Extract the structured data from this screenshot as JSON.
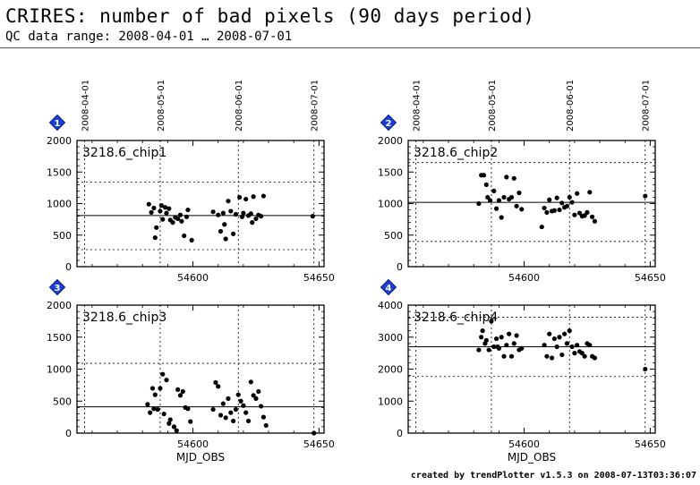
{
  "header": {
    "title": "CRIRES: number of bad pixels (90 days period)",
    "subtitle": "QC data range: 2008-04-01 … 2008-07-01"
  },
  "footer": "created by trendPlotter v1.5.3 on 2008-07-13T03:36:07",
  "colors": {
    "badge": "#1a3fd6",
    "points": "#000000"
  },
  "chart_data": [
    {
      "type": "scatter",
      "badge": "1",
      "label": "3218.6_chip1",
      "xlabel": "",
      "xlim": [
        54554,
        54652
      ],
      "ylim": [
        0,
        2000
      ],
      "yticks": [
        "0",
        "500",
        "1000",
        "1500",
        "2000"
      ],
      "ytick_values": [
        0,
        500,
        1000,
        1500,
        2000
      ],
      "xticks": [
        "54600",
        "54650"
      ],
      "xtick_values": [
        54600,
        54650
      ],
      "top_dates": [
        "2008-04-01",
        "2008-05-01",
        "2008-06-01",
        "2008-07-01"
      ],
      "top_date_mjd": [
        54557,
        54587,
        54618,
        54648
      ],
      "mean": 810,
      "limits": [
        270,
        1340
      ],
      "x": [
        54582.5,
        54583.5,
        54584.5,
        54585,
        54585.5,
        54587,
        54587.5,
        54588,
        54589,
        54589.5,
        54590.5,
        54591,
        54592,
        54593,
        54594,
        54595,
        54595.5,
        54596.5,
        54597.5,
        54598,
        54599.5,
        54608,
        54610,
        54611,
        54612,
        54612.5,
        54613,
        54614,
        54615,
        54616,
        54617,
        54618.5,
        54619.5,
        54620,
        54621,
        54622,
        54623,
        54623.5,
        54624,
        54625,
        54626,
        54627,
        54628,
        54647.5
      ],
      "y": [
        990,
        860,
        930,
        460,
        620,
        880,
        970,
        750,
        940,
        850,
        920,
        740,
        700,
        780,
        760,
        820,
        720,
        490,
        790,
        900,
        420,
        870,
        820,
        560,
        850,
        670,
        440,
        1040,
        880,
        520,
        830,
        1100,
        790,
        850,
        1070,
        810,
        840,
        700,
        1110,
        760,
        820,
        800,
        1120,
        800
      ]
    },
    {
      "type": "scatter",
      "badge": "2",
      "label": "3218.6_chip2",
      "xlabel": "",
      "xlim": [
        54554,
        54652
      ],
      "ylim": [
        0,
        2000
      ],
      "yticks": [
        "0",
        "500",
        "1000",
        "1500",
        "2000"
      ],
      "ytick_values": [
        0,
        500,
        1000,
        1500,
        2000
      ],
      "xticks": [
        "54600",
        "54650"
      ],
      "xtick_values": [
        54600,
        54650
      ],
      "top_dates": [
        "2008-04-01",
        "2008-05-01",
        "2008-06-01",
        "2008-07-01"
      ],
      "top_date_mjd": [
        54557,
        54587,
        54618,
        54648
      ],
      "mean": 1020,
      "limits": [
        400,
        1650
      ],
      "x": [
        54582,
        54583,
        54584,
        54585,
        54585.5,
        54586.5,
        54588,
        54589,
        54590,
        54591,
        54592,
        54593,
        54594,
        54595,
        54596,
        54597,
        54598,
        54599,
        54607,
        54608,
        54609,
        54610,
        54611,
        54612,
        54613,
        54614,
        54615,
        54616,
        54617,
        54618,
        54619,
        54620,
        54621,
        54622,
        54623,
        54624,
        54625,
        54626,
        54627,
        54628,
        54648
      ],
      "y": [
        1000,
        1450,
        1450,
        1300,
        1100,
        1050,
        1200,
        920,
        1050,
        780,
        1100,
        1420,
        1070,
        1100,
        1400,
        960,
        1170,
        910,
        630,
        930,
        860,
        1060,
        880,
        890,
        1090,
        900,
        1010,
        940,
        960,
        1100,
        1020,
        820,
        1160,
        850,
        800,
        810,
        860,
        1180,
        790,
        720,
        1120
      ]
    },
    {
      "type": "scatter",
      "badge": "3",
      "label": "3218.6_chip3",
      "xlabel": "MJD_OBS",
      "xlim": [
        54554,
        54652
      ],
      "ylim": [
        0,
        2000
      ],
      "yticks": [
        "0",
        "500",
        "1000",
        "1500",
        "2000"
      ],
      "ytick_values": [
        0,
        500,
        1000,
        1500,
        2000
      ],
      "xticks": [
        "54600",
        "54650"
      ],
      "xtick_values": [
        54600,
        54650
      ],
      "top_dates": [],
      "top_date_mjd": [
        54557,
        54587,
        54618,
        54648
      ],
      "mean": 410,
      "limits": [
        0,
        1090
      ],
      "x": [
        54582,
        54583,
        54584,
        54584.5,
        54585,
        54586,
        54587,
        54588,
        54588.5,
        54589.5,
        54590.5,
        54591,
        54592.5,
        54593.5,
        54594,
        54595,
        54596,
        54597,
        54598,
        54599,
        54608,
        54609,
        54610,
        54611,
        54612,
        54613,
        54614,
        54615,
        54616,
        54617,
        54618,
        54619,
        54620,
        54621,
        54622,
        54623,
        54624,
        54625,
        54626,
        54627,
        54628,
        54629,
        54648
      ],
      "y": [
        450,
        320,
        700,
        380,
        600,
        370,
        700,
        920,
        300,
        830,
        150,
        210,
        100,
        40,
        680,
        590,
        650,
        400,
        380,
        180,
        370,
        790,
        730,
        280,
        460,
        240,
        540,
        320,
        190,
        370,
        600,
        500,
        430,
        320,
        190,
        800,
        590,
        540,
        650,
        420,
        250,
        120,
        0
      ]
    },
    {
      "type": "scatter",
      "badge": "4",
      "label": "3218.6_chip4",
      "xlabel": "MJD_OBS",
      "xlim": [
        54554,
        54652
      ],
      "ylim": [
        0,
        4000
      ],
      "yticks": [
        "0",
        "1000",
        "2000",
        "3000",
        "4000"
      ],
      "ytick_values": [
        0,
        1000,
        2000,
        3000,
        4000
      ],
      "xticks": [
        "54600",
        "54650"
      ],
      "xtick_values": [
        54600,
        54650
      ],
      "top_dates": [],
      "top_date_mjd": [
        54557,
        54587,
        54618,
        54648
      ],
      "mean": 2700,
      "limits": [
        1770,
        3620
      ],
      "x": [
        54582,
        54583,
        54583.5,
        54584.5,
        54585,
        54586,
        54587,
        54588,
        54589,
        54589.5,
        54590,
        54591,
        54592,
        54593,
        54594,
        54595,
        54596,
        54597,
        54598,
        54599,
        54608,
        54609,
        54610,
        54611,
        54612,
        54613,
        54614,
        54615,
        54616,
        54617,
        54618,
        54619,
        54620,
        54621,
        54622,
        54623,
        54624,
        54625,
        54626,
        54627,
        54628,
        54648
      ],
      "y": [
        2600,
        3000,
        3200,
        2800,
        2900,
        2600,
        3500,
        2700,
        2950,
        2700,
        2650,
        3000,
        2400,
        2750,
        3100,
        2400,
        2800,
        3050,
        2600,
        2650,
        2750,
        2400,
        3100,
        2350,
        2950,
        2700,
        3000,
        2450,
        3100,
        2800,
        3200,
        2700,
        2500,
        2750,
        2550,
        2500,
        2400,
        2800,
        2750,
        2400,
        2350,
        2000
      ]
    }
  ]
}
